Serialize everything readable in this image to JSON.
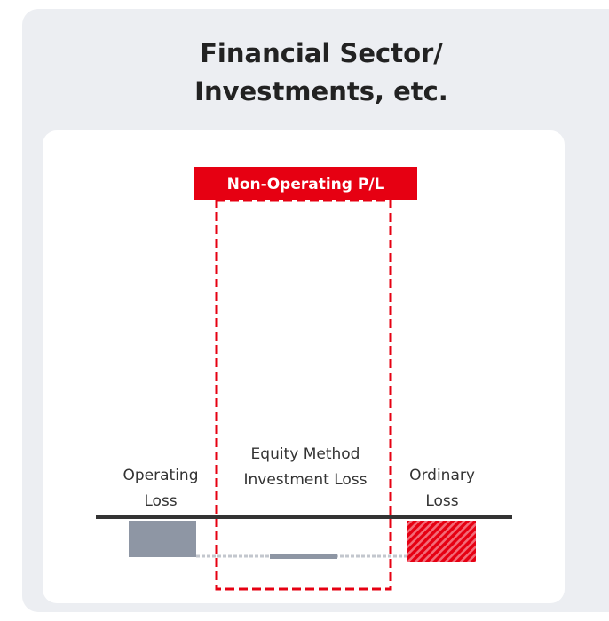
{
  "title": [
    "Financial Sector/",
    "Investments, etc."
  ],
  "box_label": "Non-Operating P/L",
  "items": [
    {
      "label": [
        "Operating",
        "Loss"
      ]
    },
    {
      "label": [
        "Equity Method",
        "Investment Loss"
      ]
    },
    {
      "label": [
        "Ordinary",
        "Loss"
      ]
    }
  ]
}
